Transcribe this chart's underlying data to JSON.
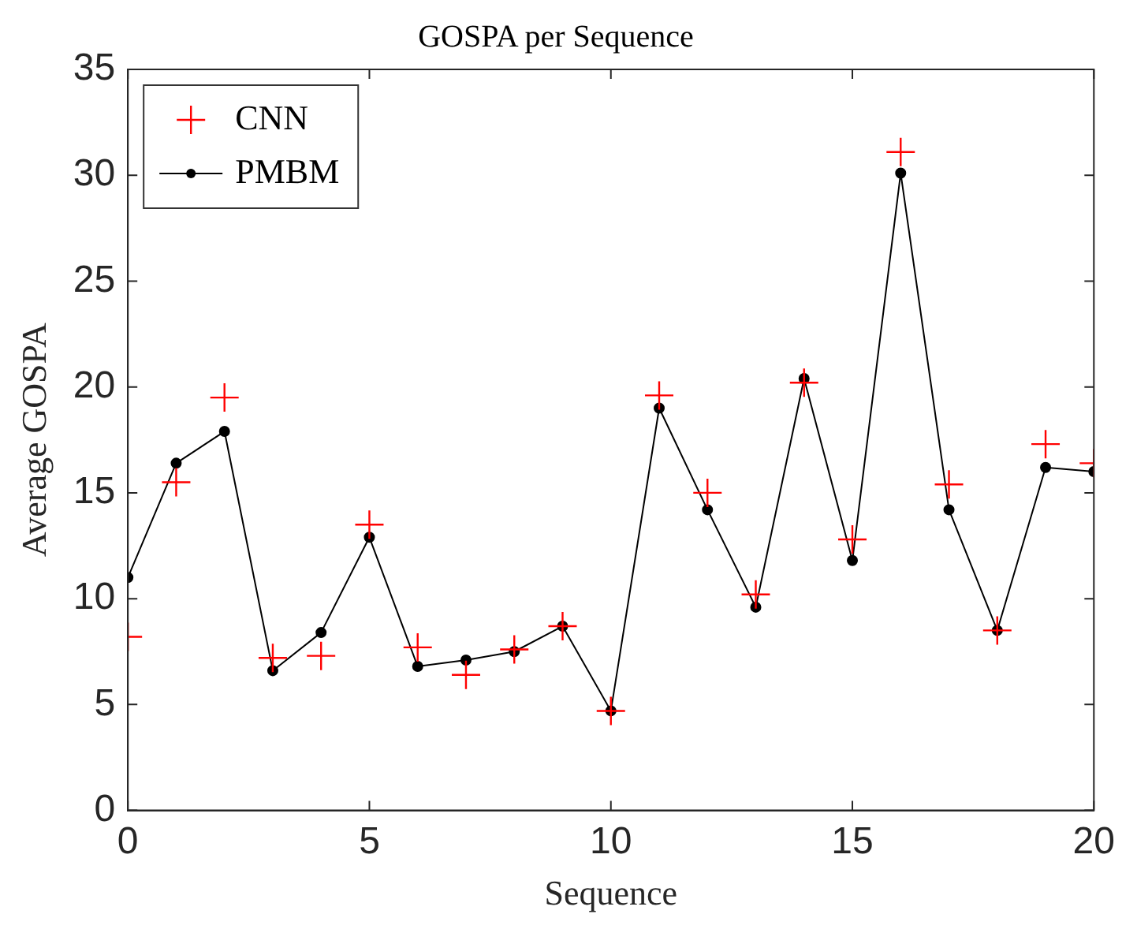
{
  "chart_data": {
    "type": "line",
    "title": "GOSPA per Sequence",
    "xlabel": "Sequence",
    "ylabel": "Average GOSPA",
    "x": [
      0,
      1,
      2,
      3,
      4,
      5,
      6,
      7,
      8,
      9,
      10,
      11,
      12,
      13,
      14,
      15,
      16,
      17,
      18,
      19,
      20
    ],
    "series": [
      {
        "name": "CNN",
        "type": "scatter",
        "marker": "cross",
        "color": "#ff0000",
        "values": [
          8.2,
          15.5,
          19.5,
          7.2,
          7.3,
          13.5,
          7.7,
          6.4,
          7.6,
          8.7,
          4.7,
          19.6,
          15.0,
          10.2,
          20.2,
          12.8,
          31.1,
          15.4,
          8.5,
          17.3,
          16.4
        ]
      },
      {
        "name": "PMBM",
        "type": "line",
        "marker": "circle",
        "line_style": "solid",
        "color": "#000000",
        "values": [
          11.0,
          16.4,
          17.9,
          6.6,
          8.4,
          12.9,
          6.8,
          7.1,
          7.5,
          8.7,
          4.7,
          19.0,
          14.2,
          9.6,
          20.4,
          11.8,
          30.1,
          14.2,
          8.5,
          16.2,
          16.0
        ]
      }
    ],
    "xlim": [
      0,
      20
    ],
    "xticks": [
      0,
      5,
      10,
      15,
      20
    ],
    "ylim": [
      0,
      35
    ],
    "yticks": [
      0,
      5,
      10,
      15,
      20,
      25,
      30,
      35
    ],
    "grid": false,
    "legend": "top left"
  }
}
